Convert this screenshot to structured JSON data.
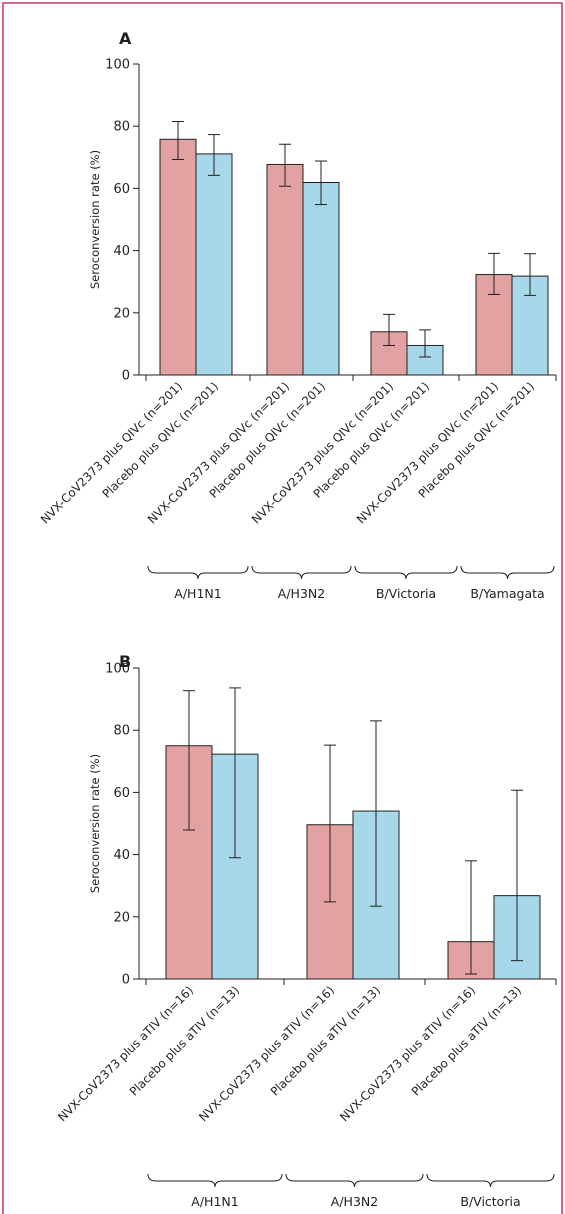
{
  "colors": {
    "frame": "#c6306c",
    "axis": "#231f20",
    "nvx": "#e3a2a2",
    "placebo": "#a7d8ea"
  },
  "chart_data": [
    {
      "panel": "A",
      "type": "bar",
      "ylabel": "Seroconversion rate (%)",
      "ylim": [
        0,
        100
      ],
      "yticks": [
        0,
        20,
        40,
        60,
        80,
        100
      ],
      "groups": [
        "A/H1N1",
        "A/H3N2",
        "B/Victoria",
        "B/Yamagata"
      ],
      "series": [
        {
          "label": "NVX-CoV2373 plus QIVc (n=201)",
          "color_key": "nvx",
          "values": [
            75.8,
            67.7,
            13.9,
            32.3
          ],
          "ci_low": [
            69.3,
            60.7,
            9.5,
            25.9
          ],
          "ci_high": [
            81.5,
            74.2,
            19.5,
            39.1
          ]
        },
        {
          "label": "Placebo plus QIVc (n=201)",
          "color_key": "placebo",
          "values": [
            71.1,
            61.9,
            9.5,
            31.8
          ],
          "ci_low": [
            64.2,
            54.8,
            5.8,
            25.6
          ],
          "ci_high": [
            77.3,
            68.8,
            14.5,
            39.0
          ]
        }
      ]
    },
    {
      "panel": "B",
      "type": "bar",
      "ylabel": "Seroconversion rate (%)",
      "ylim": [
        0,
        100
      ],
      "yticks": [
        0,
        20,
        40,
        60,
        80,
        100
      ],
      "groups": [
        "A/H1N1",
        "A/H3N2",
        "B/Victoria"
      ],
      "series": [
        {
          "label": "NVX-CoV2373 plus aTIV (n=16)",
          "color_key": "nvx",
          "values": [
            75.0,
            49.6,
            12.0
          ],
          "ci_low": [
            47.9,
            24.8,
            1.6
          ],
          "ci_high": [
            92.7,
            75.2,
            38.0
          ]
        },
        {
          "label": "Placebo plus aTIV (n=13)",
          "color_key": "placebo",
          "values": [
            72.3,
            54.0,
            26.8
          ],
          "ci_low": [
            39.0,
            23.4,
            5.9
          ],
          "ci_high": [
            93.6,
            83.0,
            60.7
          ]
        }
      ]
    }
  ]
}
